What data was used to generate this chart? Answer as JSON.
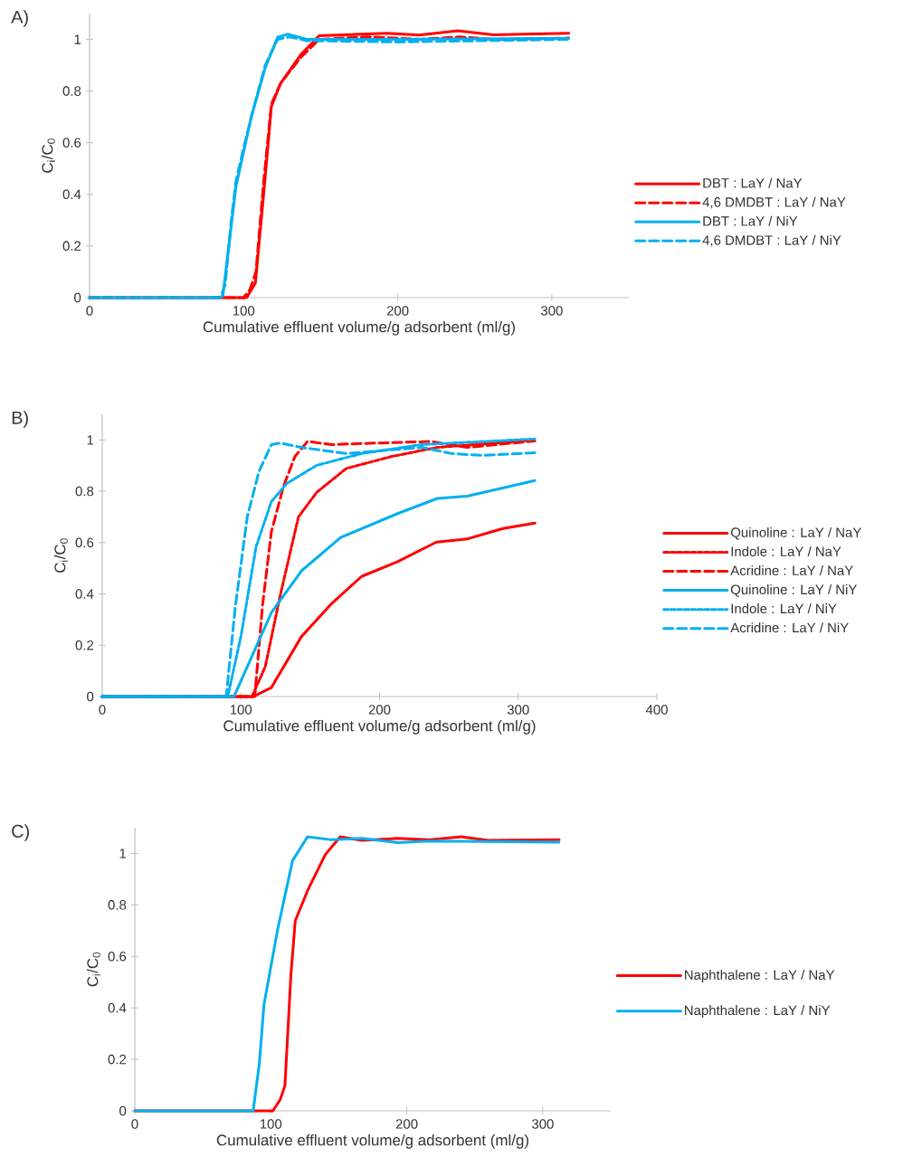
{
  "chart_data": [
    {
      "type": "line",
      "title": "A)",
      "xlabel": "Cumulative effluent volume/g adsorbent (ml/g)",
      "ylabel": "C$_{i}$/C$_{0}$",
      "xlim": [
        0,
        350
      ],
      "ylim": [
        0,
        1.1
      ],
      "xticks": [
        0,
        100,
        200,
        300
      ],
      "yticks": [
        0,
        0.2,
        0.4,
        0.6,
        0.8,
        1
      ],
      "legend": "right",
      "series": [
        {
          "name": "DBT : LaY / NaY",
          "color": "#ff0000",
          "line_style": "solid",
          "x": [
            0,
            102,
            107.6,
            113.8,
            118,
            124,
            137,
            149,
            193,
            214,
            239,
            262,
            311
          ],
          "values": [
            0,
            0,
            0.056,
            0.454,
            0.74,
            0.83,
            0.94,
            1.014,
            1.024,
            1.017,
            1.033,
            1.018,
            1.024
          ]
        },
        {
          "name": "4,6 DMDBT : LaY / NaY",
          "color": "#ff0000",
          "line_style": "dashed",
          "x": [
            0,
            100,
            104,
            108,
            113,
            118,
            124,
            137,
            149,
            180,
            214,
            240,
            262,
            311
          ],
          "values": [
            0,
            0,
            0.03,
            0.1,
            0.45,
            0.75,
            0.83,
            0.93,
            1.0,
            1.01,
            1.0,
            1.01,
            1.0,
            1.005
          ]
        },
        {
          "name": "DBT : LaY / NiY",
          "color": "#00b0f0",
          "line_style": "solid",
          "x": [
            0,
            84,
            86.5,
            93,
            95,
            105,
            114,
            122,
            128.4,
            141,
            200,
            311
          ],
          "values": [
            0,
            0,
            0.007,
            0.33,
            0.43,
            0.7,
            0.89,
            1.008,
            1.02,
            1.0,
            1.0,
            1.004
          ]
        },
        {
          "name": "4,6 DMDBT : LaY / NiY",
          "color": "#00b0f0",
          "line_style": "dashed",
          "x": [
            0,
            85,
            88,
            92,
            95,
            100,
            105,
            114,
            122,
            130,
            141,
            200,
            311
          ],
          "values": [
            0,
            0,
            0.05,
            0.3,
            0.45,
            0.58,
            0.7,
            0.9,
            1.0,
            1.01,
            0.995,
            0.99,
            1.0
          ]
        }
      ]
    },
    {
      "type": "line",
      "title": "B)",
      "xlabel": "Cumulative effluent volume/g adsorbent (ml/g)",
      "ylabel": "C$_{i}$/C$_{0}$",
      "xlim": [
        0,
        400
      ],
      "ylim": [
        0,
        1.1
      ],
      "xticks": [
        0,
        100,
        200,
        300,
        400
      ],
      "yticks": [
        0,
        0.2,
        0.4,
        0.6,
        0.8,
        1
      ],
      "legend": "right",
      "series": [
        {
          "name": "Quinoline : LaY / NaY",
          "color": "#ff0000",
          "line_style": "solid",
          "x": [
            0,
            109,
            122,
            143.7,
            165.5,
            187,
            213,
            241,
            263,
            289,
            312
          ],
          "values": [
            0,
            0,
            0.035,
            0.234,
            0.363,
            0.468,
            0.526,
            0.602,
            0.614,
            0.655,
            0.676
          ]
        },
        {
          "name": "Indole : LaY / NaY",
          "color": "#ff0000",
          "line_style": "dotted",
          "x": [
            0,
            108,
            117.6,
            128.5,
            141.5,
            154.5,
            176,
            209,
            241.6,
            312
          ],
          "values": [
            0,
            0,
            0.117,
            0.398,
            0.7,
            0.795,
            0.889,
            0.936,
            0.971,
            1.0
          ]
        },
        {
          "name": "Acridine : LaY / NaY",
          "color": "#ff0000",
          "line_style": "dashed",
          "x": [
            0,
            110,
            115.5,
            122,
            130.7,
            139,
            148,
            165.5,
            198,
            237,
            263,
            312
          ],
          "values": [
            0,
            0,
            0.351,
            0.643,
            0.819,
            0.936,
            0.994,
            0.982,
            0.988,
            0.994,
            0.971,
            0.996
          ]
        },
        {
          "name": "Quinoline : LaY / NiY",
          "color": "#00b0f0",
          "line_style": "solid",
          "x": [
            0,
            95,
            122,
            143.7,
            172,
            213,
            241.6,
            263,
            312
          ],
          "values": [
            0,
            0,
            0.327,
            0.49,
            0.62,
            0.713,
            0.772,
            0.781,
            0.842
          ]
        },
        {
          "name": "Indole : LaY / NiY",
          "color": "#00b0f0",
          "line_style": "dotted",
          "x": [
            0,
            90.5,
            100,
            111,
            122,
            133,
            154.6,
            187,
            230.5,
            312
          ],
          "values": [
            0,
            0,
            0.234,
            0.585,
            0.76,
            0.83,
            0.901,
            0.947,
            0.982,
            1.004
          ]
        },
        {
          "name": "Acridine : LaY / NiY",
          "color": "#00b0f0",
          "line_style": "dashed",
          "x": [
            0,
            89.4,
            96,
            104.6,
            113,
            122,
            128.5,
            143.7,
            176,
            230.5,
            252,
            274,
            312
          ],
          "values": [
            0,
            0,
            0.351,
            0.7,
            0.877,
            0.982,
            0.988,
            0.971,
            0.947,
            0.971,
            0.947,
            0.94,
            0.95
          ]
        }
      ]
    },
    {
      "type": "line",
      "title": "C)",
      "xlabel": "Cumulative effluent volume/g adsorbent (ml/g)",
      "ylabel": "C$_{i}$/C$_{0}$",
      "xlim": [
        0,
        350
      ],
      "ylim": [
        0,
        1.1
      ],
      "xticks": [
        0,
        100,
        200,
        300
      ],
      "yticks": [
        0,
        0.2,
        0.4,
        0.6,
        0.8,
        1
      ],
      "legend": "right",
      "series": [
        {
          "name": "Naphthalene : LaY / NaY",
          "color": "#ff0000",
          "line_style": "solid",
          "x": [
            0,
            101.5,
            107,
            110.4,
            114.8,
            118,
            127,
            140,
            151,
            167,
            193.5,
            215.6,
            240,
            260,
            312
          ],
          "values": [
            0,
            0,
            0.045,
            0.098,
            0.529,
            0.739,
            0.855,
            0.995,
            1.065,
            1.051,
            1.059,
            1.053,
            1.065,
            1.051,
            1.053
          ]
        },
        {
          "name": "Naphthalene : LaY / NiY",
          "color": "#00b0f0",
          "line_style": "solid",
          "x": [
            0,
            87,
            91.5,
            95,
            105,
            116,
            127,
            144.7,
            167,
            193.5,
            215.6,
            312
          ],
          "values": [
            0,
            0,
            0.179,
            0.413,
            0.704,
            0.972,
            1.065,
            1.053,
            1.059,
            1.042,
            1.048,
            1.044
          ]
        }
      ]
    }
  ]
}
